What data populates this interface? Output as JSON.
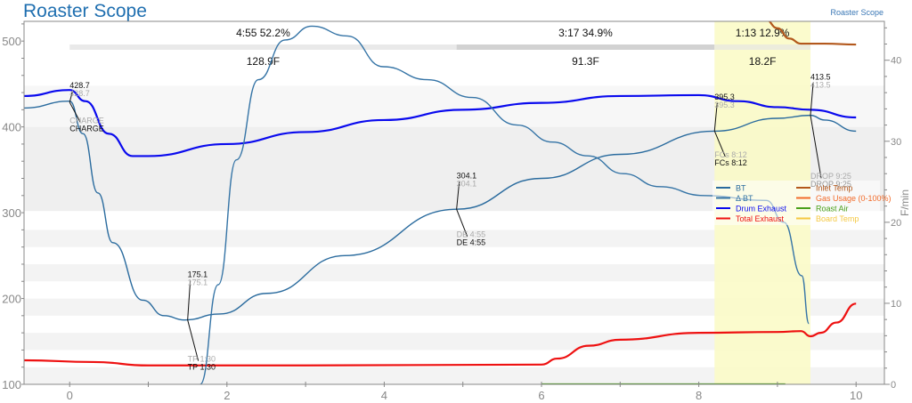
{
  "header": {
    "title": "Roaster Scope",
    "brand_link": "Roaster Scope"
  },
  "colors": {
    "bt": "#2a6b9e",
    "ror": "#3574a6",
    "drum": "#0a0aee",
    "total": "#ee1111",
    "inlet": "#b3581c",
    "gas": "#f26b2a",
    "air": "#4aa01a",
    "board": "#f5c842",
    "highlight": "#fafac4"
  },
  "chart_data": {
    "type": "line",
    "title": "Roaster Scope",
    "xlabel": "",
    "ylabel": "",
    "y2label": "F/min",
    "xlim": [
      -0.58,
      10.36
    ],
    "ylim": [
      100,
      523
    ],
    "y2lim": [
      0,
      44.8
    ],
    "xticks": [
      0,
      2,
      4,
      6,
      8,
      10
    ],
    "yticks": [
      100,
      200,
      300,
      400,
      500
    ],
    "y2ticks": [
      0,
      10,
      20,
      30,
      40
    ],
    "legend": {
      "placement": "center-right",
      "entries": [
        {
          "name": "BT",
          "color": "#2a6b9e"
        },
        {
          "name": "Inlet Temp",
          "color": "#b3581c"
        },
        {
          "name": "Δ BT",
          "color": "#3574a6"
        },
        {
          "name": "Gas Usage (0-100%)",
          "color": "#f26b2a"
        },
        {
          "name": "Drum Exhaust",
          "color": "#0a0aee"
        },
        {
          "name": "Roast Air",
          "color": "#4aa01a"
        },
        {
          "name": "Total Exhaust",
          "color": "#ee1111"
        },
        {
          "name": "Board Temp",
          "color": "#f5c842"
        }
      ]
    },
    "series": [
      {
        "name": "BT",
        "axis": "left",
        "color": "#2a6b9e",
        "points": [
          [
            -0.58,
            422
          ],
          [
            0,
            430
          ],
          [
            0.17,
            392
          ],
          [
            0.36,
            323
          ],
          [
            0.55,
            265
          ],
          [
            0.93,
            198
          ],
          [
            1.2,
            180
          ],
          [
            1.46,
            175
          ],
          [
            1.91,
            182
          ],
          [
            2.51,
            206
          ],
          [
            3.5,
            250
          ],
          [
            4.92,
            304
          ],
          [
            6,
            340
          ],
          [
            7,
            368
          ],
          [
            8.2,
            395
          ],
          [
            9,
            410
          ],
          [
            9.42,
            413.5
          ],
          [
            9.6,
            408
          ],
          [
            10,
            395
          ]
        ]
      },
      {
        "name": "Drum Exhaust",
        "axis": "left",
        "color": "#0a0aee",
        "points": [
          [
            -0.58,
            436
          ],
          [
            0,
            443
          ],
          [
            0.2,
            430
          ],
          [
            0.5,
            392
          ],
          [
            0.8,
            366
          ],
          [
            1.0,
            366
          ],
          [
            2,
            380
          ],
          [
            3,
            394
          ],
          [
            4,
            408
          ],
          [
            5,
            420
          ],
          [
            6,
            428
          ],
          [
            7,
            436
          ],
          [
            8,
            437
          ],
          [
            8.5,
            430
          ],
          [
            9,
            423
          ],
          [
            9.42,
            420
          ],
          [
            10,
            411
          ]
        ]
      },
      {
        "name": "Total Exhaust",
        "axis": "left",
        "color": "#ee1111",
        "points": [
          [
            -0.58,
            128
          ],
          [
            0.3,
            126
          ],
          [
            1,
            122
          ],
          [
            3,
            122
          ],
          [
            6,
            123
          ],
          [
            6.2,
            130
          ],
          [
            6.6,
            145
          ],
          [
            7,
            152
          ],
          [
            8,
            160
          ],
          [
            9,
            161
          ],
          [
            9.3,
            162
          ],
          [
            9.42,
            156
          ],
          [
            9.55,
            160
          ],
          [
            9.75,
            172
          ],
          [
            10,
            194
          ]
        ]
      },
      {
        "name": "Inlet Temp",
        "axis": "left",
        "color": "#b3581c",
        "points": [
          [
            8.85,
            525
          ],
          [
            9.0,
            515
          ],
          [
            9.15,
            503
          ],
          [
            9.3,
            497
          ],
          [
            9.6,
            497
          ],
          [
            10,
            496
          ]
        ]
      },
      {
        "name": "Δ BT",
        "axis": "right",
        "color": "#3574a6",
        "points": [
          [
            1.66,
            0
          ],
          [
            1.89,
            12.3
          ],
          [
            2.12,
            27.7
          ],
          [
            2.4,
            37.6
          ],
          [
            2.74,
            42.5
          ],
          [
            3.08,
            44.2
          ],
          [
            3.53,
            43
          ],
          [
            3.99,
            39.2
          ],
          [
            4.55,
            37.6
          ],
          [
            5.12,
            35.4
          ],
          [
            5.69,
            32
          ],
          [
            6.14,
            29.9
          ],
          [
            6.59,
            28.2
          ],
          [
            7.04,
            26
          ],
          [
            7.5,
            24.4
          ],
          [
            8.06,
            23.3
          ],
          [
            8.86,
            22.7
          ],
          [
            9.08,
            20
          ],
          [
            9.31,
            13.4
          ],
          [
            9.4,
            7.5
          ]
        ]
      },
      {
        "name": "Roast Air",
        "axis": "right",
        "color": "#4aa01a",
        "points": [
          [
            6,
            0
          ],
          [
            9.1,
            0
          ]
        ]
      }
    ],
    "phases": [
      {
        "start": 0,
        "end": 4.92,
        "label_top": "4:55  52.2%",
        "label_bottom": "128.9F",
        "color": "#e9e9e9"
      },
      {
        "start": 4.92,
        "end": 8.2,
        "label_top": "3:17  34.9%",
        "label_bottom": "91.3F",
        "color": "#d2d2d2"
      },
      {
        "start": 8.2,
        "end": 9.42,
        "label_top": "1:13  12.9%",
        "label_bottom": "18.2F",
        "color": "#ececdc"
      }
    ],
    "highlight": [
      8.2,
      9.42
    ],
    "events": [
      {
        "t": 0,
        "value": 428.7,
        "value_label": "428.7",
        "label": "CHARGE",
        "dx": 0,
        "vy": 445,
        "ly": 395
      },
      {
        "t": 1.5,
        "value": 175.1,
        "value_label": "175.1",
        "label": "TP 1:30",
        "dx": 0,
        "vy": 225,
        "ly": 117
      },
      {
        "t": 4.92,
        "value": 304.1,
        "value_label": "304.1",
        "label": "DE 4:55",
        "dx": 0,
        "vy": 340,
        "ly": 262
      },
      {
        "t": 8.2,
        "value": 395.3,
        "value_label": "395.3",
        "label": "FCs 8:12",
        "dx": 0,
        "vy": 432,
        "ly": 355
      },
      {
        "t": 9.42,
        "value": 413.5,
        "value_label": "413.5",
        "label": "DROP 9:25",
        "dx": 0,
        "vy": 455,
        "ly": 330
      }
    ]
  }
}
